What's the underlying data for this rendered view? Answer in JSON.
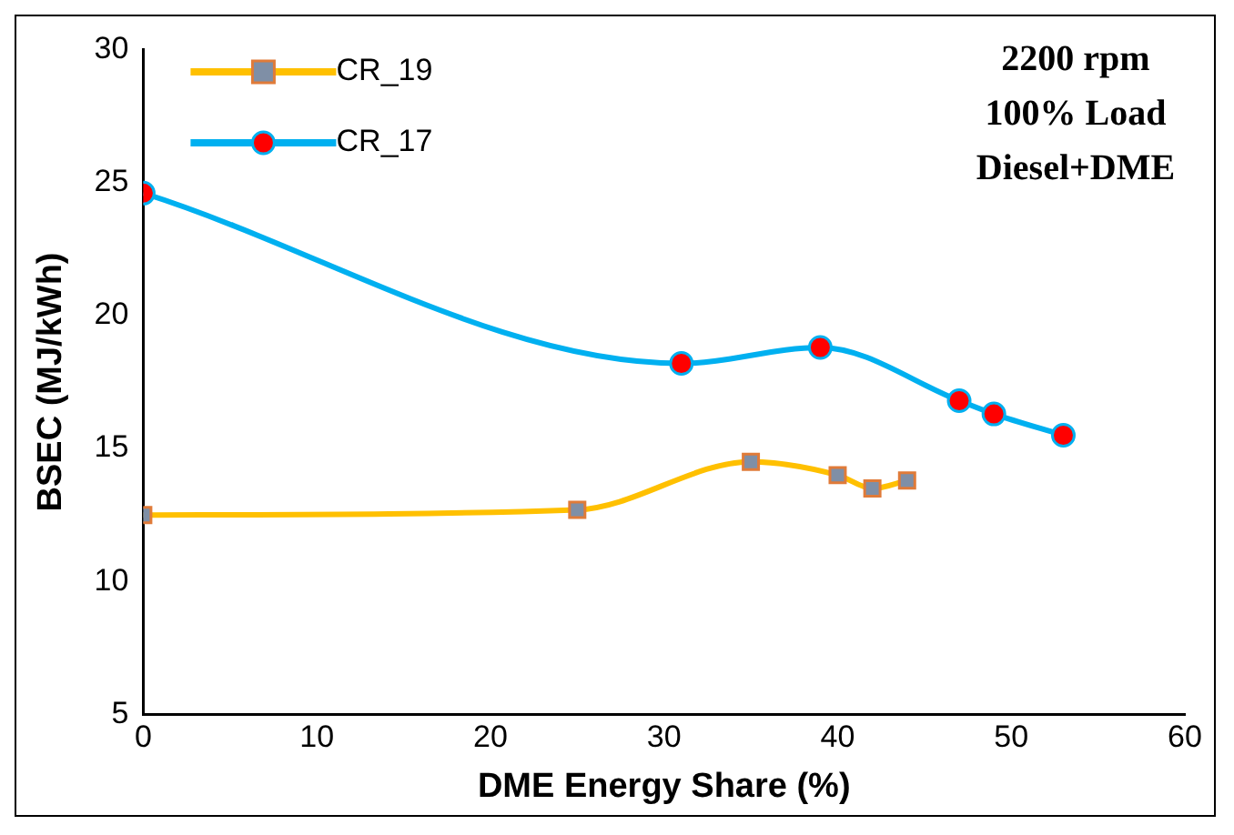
{
  "chart_data": {
    "type": "line",
    "xlabel": "DME Energy Share (%)",
    "ylabel": "BSEC (MJ/kWh)",
    "xlim": [
      0,
      60
    ],
    "xticks": [
      0,
      10,
      20,
      30,
      40,
      50,
      60
    ],
    "ylim": [
      5,
      30
    ],
    "yticks": [
      5,
      10,
      15,
      20,
      25,
      30
    ],
    "grid": false,
    "legend": "top left",
    "annotations": [
      "2200 rpm",
      "100% Load",
      "Diesel+DME"
    ],
    "series": [
      {
        "name": "CR_19",
        "color": "#ffc000",
        "marker": "square",
        "x": [
          0,
          25,
          35,
          40,
          42,
          44
        ],
        "values": [
          12.5,
          12.7,
          14.5,
          14.0,
          13.5,
          13.8
        ]
      },
      {
        "name": "CR_17",
        "color": "#00b0f0",
        "marker": "circle",
        "x": [
          0,
          31,
          39,
          47,
          49,
          53
        ],
        "values": [
          24.6,
          18.2,
          18.8,
          16.8,
          16.3,
          15.5
        ]
      }
    ]
  }
}
